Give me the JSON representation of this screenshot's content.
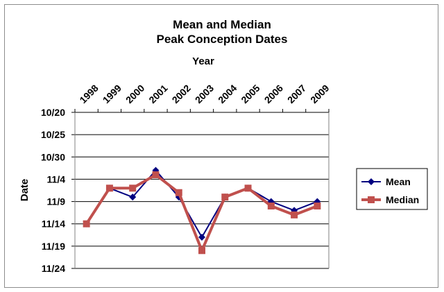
{
  "chart_data": {
    "type": "line",
    "title": "Mean and Median",
    "subtitle": "Peak Conception Dates",
    "xlabel": "Year",
    "ylabel": "Date",
    "categories": [
      "1998",
      "1999",
      "2000",
      "2001",
      "2002",
      "2003",
      "2004",
      "2005",
      "2006",
      "2007",
      "2009"
    ],
    "y_tick_labels": [
      "10/20",
      "10/25",
      "10/30",
      "11/4",
      "11/9",
      "11/14",
      "11/19",
      "11/24"
    ],
    "y_tick_values": [
      "10/20",
      "10/25",
      "10/30",
      "11/04",
      "11/09",
      "11/14",
      "11/19",
      "11/24"
    ],
    "y_axis_reversed": true,
    "ylim": [
      "10/20",
      "11/24"
    ],
    "grid": true,
    "legend": "right",
    "series": [
      {
        "name": "Mean",
        "color": "#000080",
        "marker": "diamond",
        "values": [
          "11/14",
          "11/06",
          "11/08",
          "11/02",
          "11/08",
          "11/17",
          "11/08",
          "11/06",
          "11/09",
          "11/11",
          "11/09"
        ]
      },
      {
        "name": "Median",
        "color": "#c0504d",
        "marker": "square",
        "values": [
          "11/14",
          "11/06",
          "11/06",
          "11/03",
          "11/07",
          "11/20",
          "11/08",
          "11/06",
          "11/10",
          "11/12",
          "11/10"
        ]
      }
    ]
  }
}
